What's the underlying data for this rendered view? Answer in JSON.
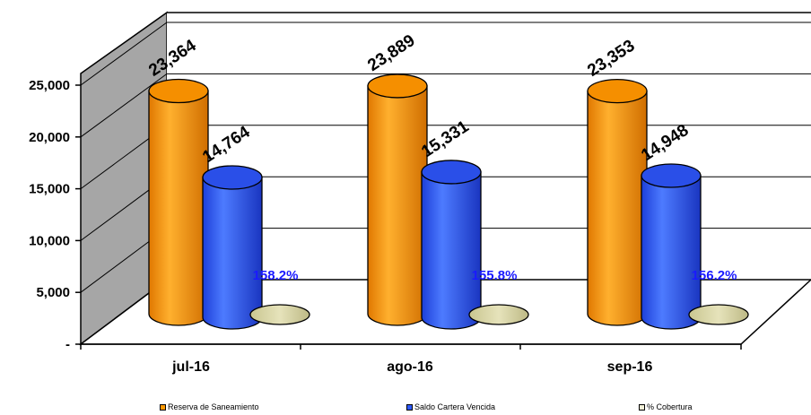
{
  "chart_data": {
    "type": "bar",
    "categories": [
      "jul-16",
      "ago-16",
      "sep-16"
    ],
    "series": [
      {
        "name": "Reserva de Saneamiento",
        "values": [
          23364,
          23889,
          23353
        ],
        "labels": [
          "23,364",
          "23,889",
          "23,353"
        ],
        "color": "#ff9900"
      },
      {
        "name": "Saldo Cartera Vencida",
        "values": [
          14764,
          15331,
          14948
        ],
        "labels": [
          "14,764",
          "15,331",
          "14,948"
        ],
        "color": "#2f5bff"
      },
      {
        "name": "% Cobertura",
        "values": [
          158.2,
          155.8,
          156.2
        ],
        "labels": [
          "158.2%",
          "155.8%",
          "156.2%"
        ],
        "color": "#dcd9a8"
      }
    ],
    "yticks": [
      {
        "value": 0,
        "label": "-"
      },
      {
        "value": 5000,
        "label": "5,000"
      },
      {
        "value": 10000,
        "label": "10,000"
      },
      {
        "value": 15000,
        "label": "15,000"
      },
      {
        "value": 20000,
        "label": "20,000"
      },
      {
        "value": 25000,
        "label": "25,000"
      }
    ],
    "ylim": [
      0,
      25000
    ],
    "grid": true,
    "legend_position": "bottom"
  },
  "legend": {
    "items": [
      {
        "label": "Reserva de Saneamiento",
        "color": "#ff9900"
      },
      {
        "label": "Saldo Cartera Vencida",
        "color": "#2f5bff"
      },
      {
        "label": "% Cobertura",
        "color": "#f2f0d8"
      }
    ]
  }
}
